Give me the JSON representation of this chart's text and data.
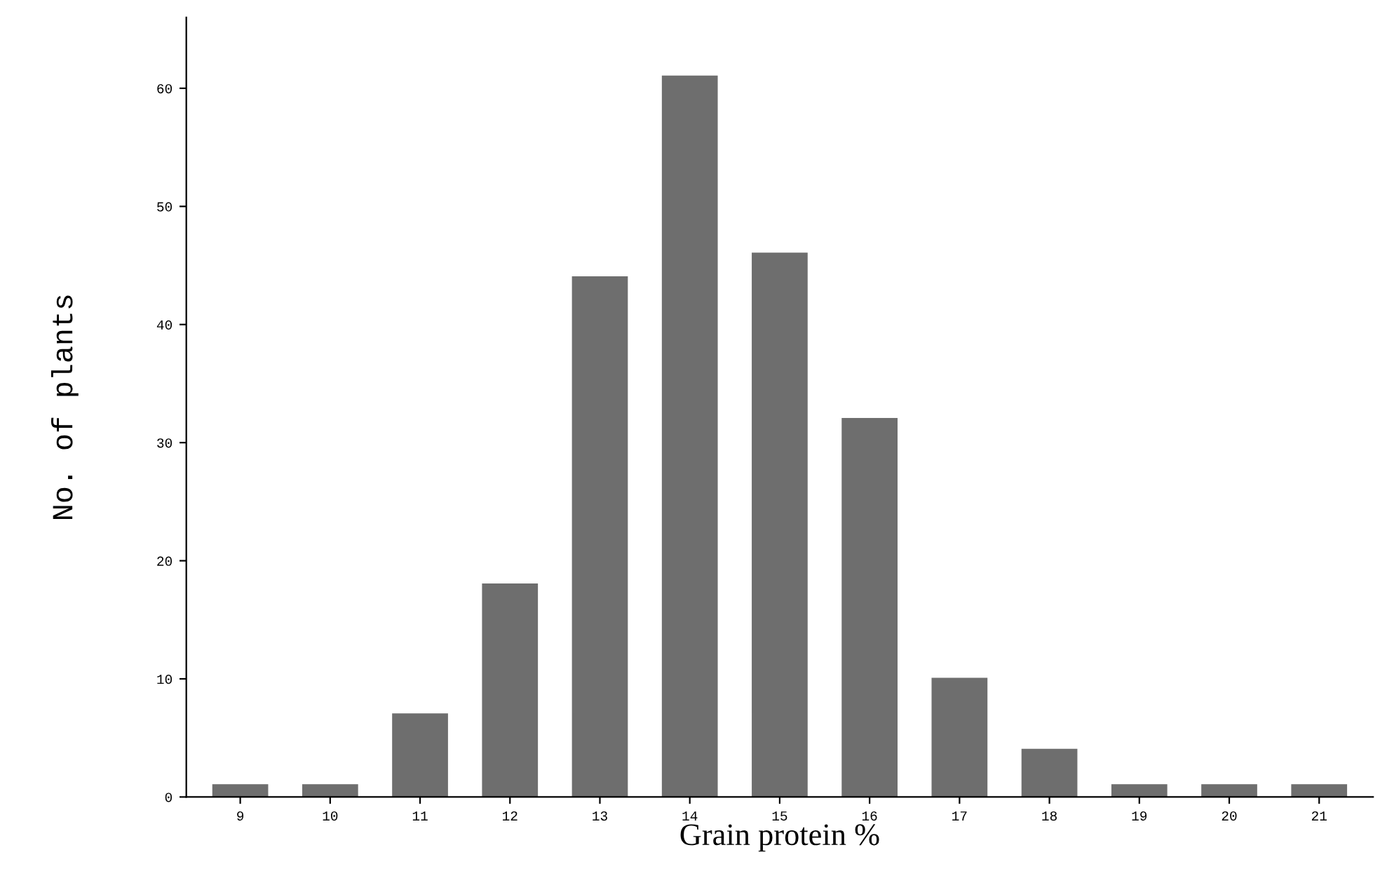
{
  "chart_data": {
    "type": "bar",
    "xlabel": "Grain protein %",
    "ylabel": "No. of plants",
    "categories": [
      "9",
      "10",
      "11",
      "12",
      "13",
      "14",
      "15",
      "16",
      "17",
      "18",
      "19",
      "20",
      "21"
    ],
    "values": [
      1,
      1,
      7,
      18,
      44,
      61,
      46,
      32,
      10,
      4,
      1,
      1,
      1
    ],
    "color": "#6e6e6e",
    "ylim": [
      0,
      66
    ],
    "yticks": [
      0,
      10,
      20,
      30,
      40,
      50,
      60
    ],
    "grid": false
  }
}
